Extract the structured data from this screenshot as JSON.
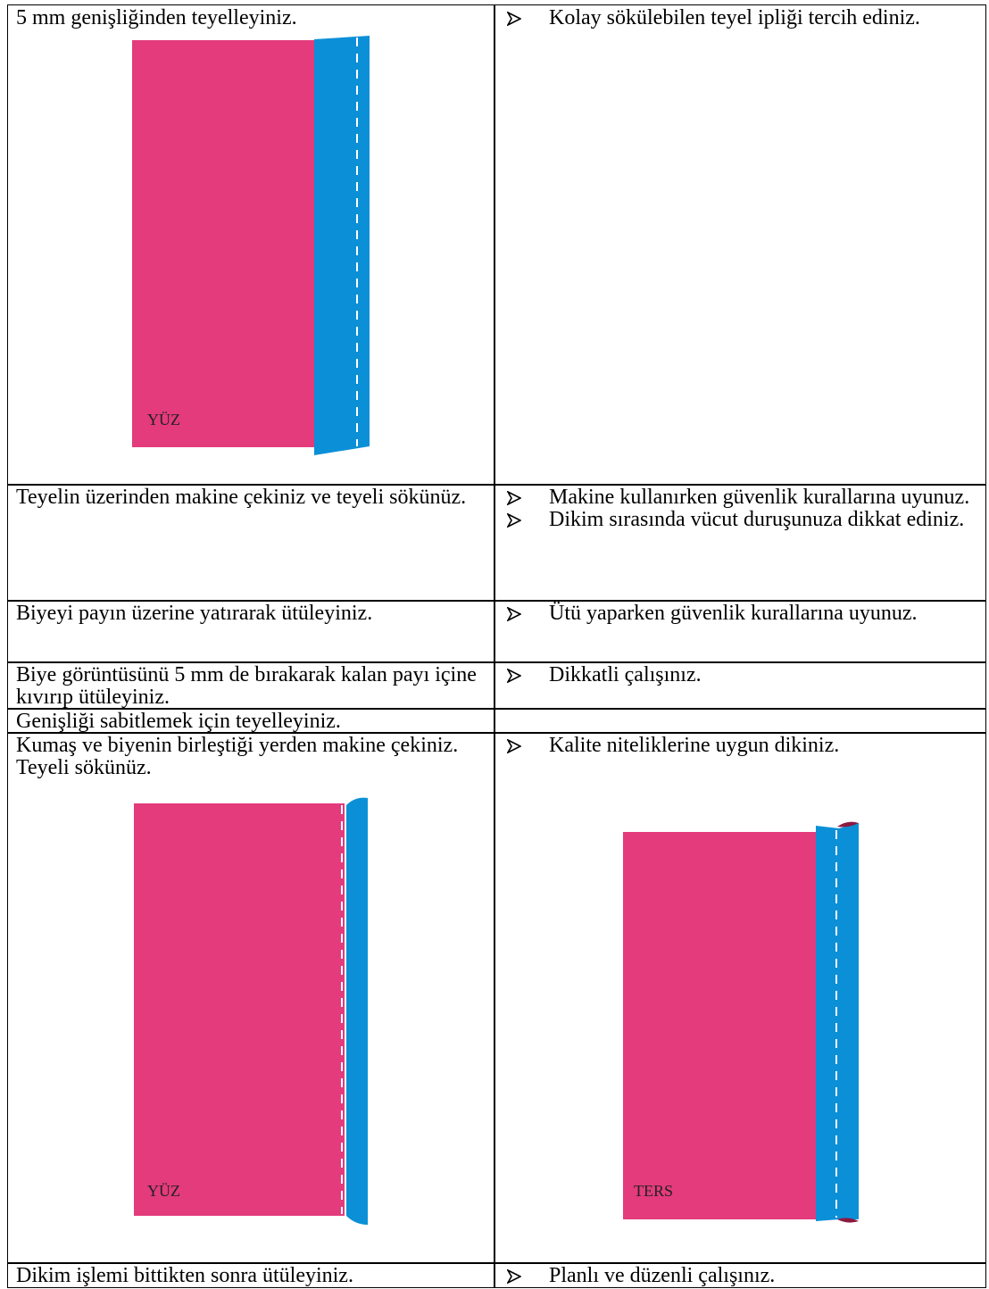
{
  "table": {
    "rows": [
      {
        "left": {
          "text": "5 mm genişliğinden teyelleyiniz.",
          "figure": "YÜZ"
        },
        "right": {
          "bullets": [
            "Kolay sökülebilen teyel ipliği tercih ediniz."
          ]
        }
      },
      {
        "left": {
          "text": "Teyelin üzerinden makine çekiniz ve teyeli sökünüz."
        },
        "right": {
          "bullets": [
            "Makine kullanırken güvenlik kurallarına uyunuz.",
            "Dikim sırasında vücut duruşunuza dikkat ediniz."
          ]
        }
      },
      {
        "left": {
          "text": "Biyeyi payın üzerine yatırarak ütüleyiniz."
        },
        "right": {
          "bullets": [
            "Ütü yaparken güvenlik kurallarına uyunuz."
          ]
        }
      },
      {
        "left": {
          "text": "Biye görüntüsünü 5 mm de bırakarak kalan payı içine kıvırıp ütüleyiniz."
        },
        "right": {
          "bullets": [
            "Dikkatli çalışınız."
          ]
        }
      },
      {
        "left": {
          "text": "Genişliği sabitlemek için teyelleyiniz."
        },
        "right": {
          "bullets": []
        }
      },
      {
        "left": {
          "text": "Kumaş ve biyenin birleştiği yerden makine çekiniz. Teyeli sökünüz.",
          "figure": "YÜZ"
        },
        "right": {
          "bullets": [
            "Kalite niteliklerine uygun dikiniz."
          ],
          "figure": "TERS"
        }
      },
      {
        "left": {
          "text": "Dikim işlemi bittikten sonra ütüleyiniz."
        },
        "right": {
          "bullets": [
            "Planlı ve düzenli çalışınız."
          ]
        }
      }
    ]
  }
}
